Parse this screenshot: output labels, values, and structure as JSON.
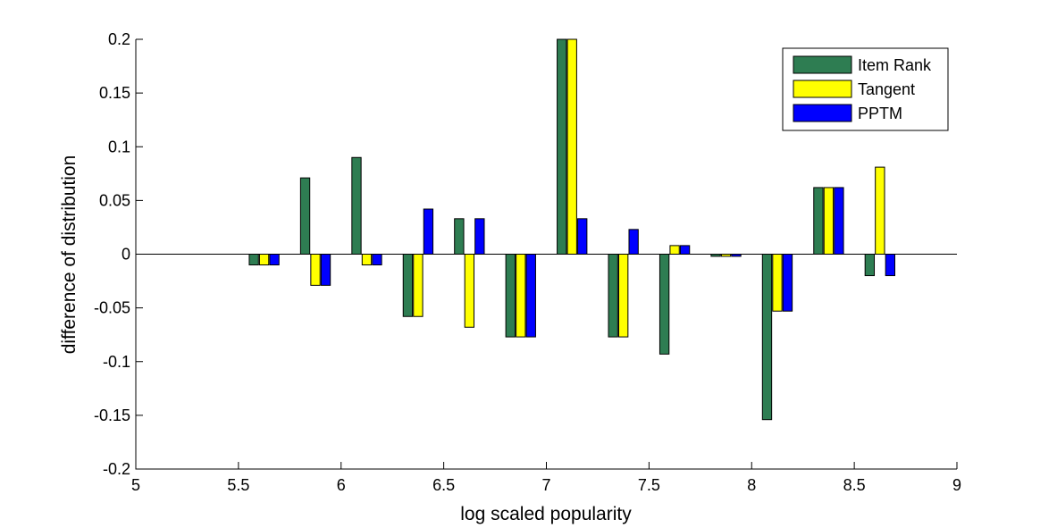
{
  "chart_data": {
    "type": "bar",
    "xlabel": "log scaled popularity",
    "ylabel": "difference of distribution",
    "xlim": [
      5,
      9
    ],
    "ylim": [
      -0.2,
      0.2
    ],
    "xticks": [
      "5",
      "5.5",
      "6",
      "6.5",
      "7",
      "7.5",
      "8",
      "8.5",
      "9"
    ],
    "yticks": [
      "-0.2",
      "-0.15",
      "-0.1",
      "-0.05",
      "0",
      "0.05",
      "0.1",
      "0.15",
      "0.2"
    ],
    "legend_position": "top-right",
    "grid": false,
    "categories": [
      5.625,
      5.875,
      6.125,
      6.375,
      6.625,
      6.875,
      7.125,
      7.375,
      7.625,
      7.875,
      8.125,
      8.375,
      8.625
    ],
    "series": [
      {
        "name": "Item Rank",
        "color": "#2E7D52",
        "values": [
          -0.01,
          0.071,
          0.09,
          -0.058,
          0.033,
          -0.077,
          0.2,
          -0.077,
          -0.093,
          -0.002,
          -0.154,
          0.062,
          -0.02
        ]
      },
      {
        "name": "Tangent",
        "color": "#FFFF00",
        "values": [
          -0.01,
          -0.029,
          -0.01,
          -0.058,
          -0.068,
          -0.077,
          0.2,
          -0.077,
          0.008,
          -0.002,
          -0.053,
          0.062,
          0.081
        ]
      },
      {
        "name": "PPTM",
        "color": "#0000FF",
        "values": [
          -0.01,
          -0.029,
          -0.01,
          0.042,
          0.033,
          -0.077,
          0.033,
          0.023,
          0.008,
          -0.002,
          -0.053,
          0.062,
          -0.02
        ]
      }
    ]
  }
}
